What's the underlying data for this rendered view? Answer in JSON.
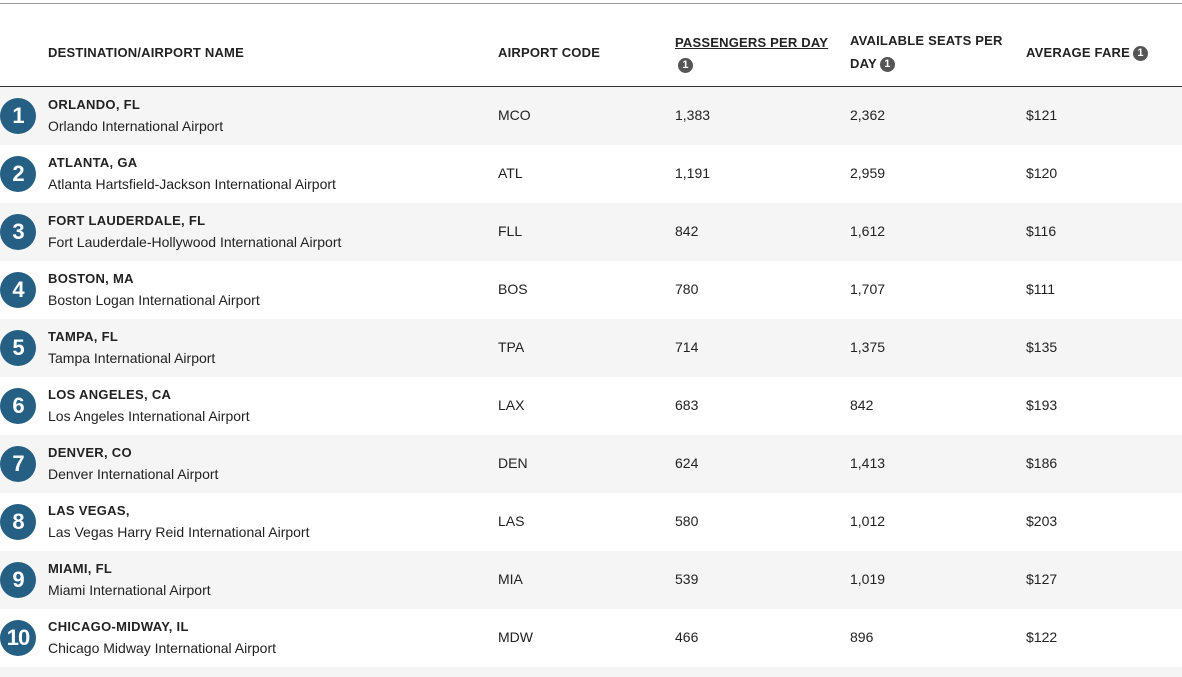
{
  "header": {
    "columns": [
      {
        "label": "DESTINATION/AIRPORT NAME"
      },
      {
        "label": "AIRPORT CODE"
      },
      {
        "label": "PASSENGERS PER DAY",
        "info": "1"
      },
      {
        "label": "AVAILABLE SEATS PER DAY",
        "info": "1"
      },
      {
        "label": "AVERAGE FARE",
        "info": "1"
      }
    ]
  },
  "table": {
    "rows": [
      {
        "rank": "1",
        "city": "ORLANDO, FL",
        "airport": "Orlando International Airport",
        "code": "MCO",
        "passengers": "1,383",
        "seats": "2,362",
        "fare": "$121"
      },
      {
        "rank": "2",
        "city": "ATLANTA, GA",
        "airport": "Atlanta Hartsfield-Jackson International Airport",
        "code": "ATL",
        "passengers": "1,191",
        "seats": "2,959",
        "fare": "$120"
      },
      {
        "rank": "3",
        "city": "FORT LAUDERDALE, FL",
        "airport": "Fort Lauderdale-Hollywood International Airport",
        "code": "FLL",
        "passengers": "842",
        "seats": "1,612",
        "fare": "$116"
      },
      {
        "rank": "4",
        "city": "BOSTON, MA",
        "airport": "Boston Logan International Airport",
        "code": "BOS",
        "passengers": "780",
        "seats": "1,707",
        "fare": "$111"
      },
      {
        "rank": "5",
        "city": "TAMPA, FL",
        "airport": "Tampa International Airport",
        "code": "TPA",
        "passengers": "714",
        "seats": "1,375",
        "fare": "$135"
      },
      {
        "rank": "6",
        "city": "LOS ANGELES, CA",
        "airport": "Los Angeles International Airport",
        "code": "LAX",
        "passengers": "683",
        "seats": "842",
        "fare": "$193"
      },
      {
        "rank": "7",
        "city": "DENVER, CO",
        "airport": "Denver International Airport",
        "code": "DEN",
        "passengers": "624",
        "seats": "1,413",
        "fare": "$186"
      },
      {
        "rank": "8",
        "city": "LAS VEGAS,",
        "airport": "Las Vegas Harry Reid International Airport",
        "code": "LAS",
        "passengers": "580",
        "seats": "1,012",
        "fare": "$203"
      },
      {
        "rank": "9",
        "city": "MIAMI, FL",
        "airport": "Miami International Airport",
        "code": "MIA",
        "passengers": "539",
        "seats": "1,019",
        "fare": "$127"
      },
      {
        "rank": "10",
        "city": "CHICAGO-MIDWAY, IL",
        "airport": "Chicago Midway International Airport",
        "code": "MDW",
        "passengers": "466",
        "seats": "896",
        "fare": "$122"
      }
    ]
  }
}
